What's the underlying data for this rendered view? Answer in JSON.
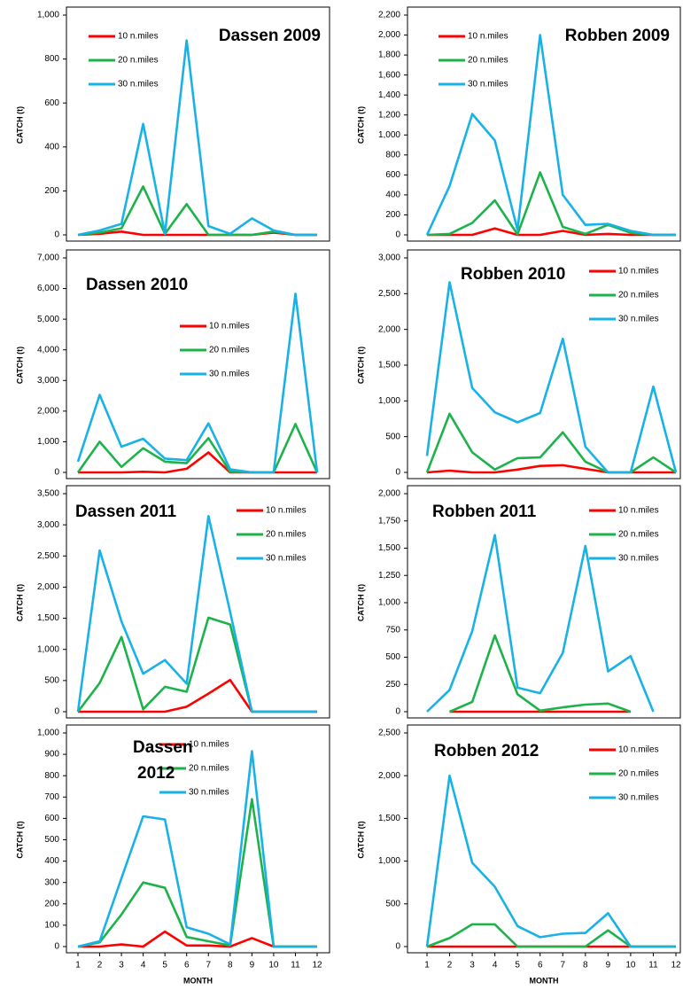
{
  "chart_data": [
    {
      "type": "line",
      "title": "Dassen 2009",
      "ylabel": "CATCH (t)",
      "x": [
        1,
        2,
        3,
        4,
        5,
        6,
        7,
        8,
        9,
        10,
        11,
        12
      ],
      "xlim": [
        1,
        12
      ],
      "ylim": [
        0,
        1000
      ],
      "yticks": [
        0,
        200,
        400,
        600,
        800,
        {
          "value": 1000,
          "label": "1,000"
        }
      ],
      "series": [
        {
          "name": "10 n.miles",
          "color": "#ff0000",
          "values": [
            0,
            5,
            15,
            0,
            0,
            0,
            0,
            0,
            0,
            10,
            0,
            0
          ]
        },
        {
          "name": "20 n.miles",
          "color": "#1db34b",
          "values": [
            0,
            10,
            30,
            220,
            5,
            140,
            0,
            0,
            0,
            15,
            0,
            0
          ]
        },
        {
          "name": "30 n.miles",
          "color": "#19b2e6",
          "values": [
            0,
            20,
            50,
            505,
            5,
            885,
            40,
            5,
            75,
            20,
            0,
            0
          ]
        }
      ]
    },
    {
      "type": "line",
      "title": "Robben 2009",
      "ylabel": "CATCH (t)",
      "x": [
        1,
        2,
        3,
        4,
        5,
        6,
        7,
        8,
        9,
        10,
        11,
        12
      ],
      "xlim": [
        1,
        12
      ],
      "ylim": [
        0,
        2200
      ],
      "yticks": [
        0,
        200,
        400,
        600,
        800,
        {
          "value": 1000,
          "label": "1,000"
        },
        {
          "value": 1200,
          "label": "1,200"
        },
        {
          "value": 1400,
          "label": "1,400"
        },
        {
          "value": 1600,
          "label": "1,600"
        },
        {
          "value": 1800,
          "label": "1,800"
        },
        {
          "value": 2000,
          "label": "2,000"
        },
        {
          "value": 2200,
          "label": "2,200"
        }
      ],
      "series": [
        {
          "name": "10 n.miles",
          "color": "#ff0000",
          "values": [
            0,
            0,
            0,
            65,
            0,
            0,
            40,
            0,
            10,
            0,
            0,
            0
          ]
        },
        {
          "name": "20 n.miles",
          "color": "#1db34b",
          "values": [
            0,
            10,
            120,
            345,
            5,
            625,
            80,
            10,
            100,
            20,
            0,
            0
          ]
        },
        {
          "name": "30 n.miles",
          "color": "#19b2e6",
          "values": [
            0,
            490,
            1210,
            945,
            50,
            2000,
            400,
            100,
            110,
            40,
            0,
            0
          ]
        }
      ]
    },
    {
      "type": "line",
      "title": "Dassen 2010",
      "ylabel": "CATCH (t)",
      "x": [
        1,
        2,
        3,
        4,
        5,
        6,
        7,
        8,
        9,
        10,
        11,
        12
      ],
      "xlim": [
        1,
        12
      ],
      "ylim": [
        0,
        7000
      ],
      "yticks": [
        0,
        {
          "value": 1000,
          "label": "1,000"
        },
        {
          "value": 2000,
          "label": "2,000"
        },
        {
          "value": 3000,
          "label": "3,000"
        },
        {
          "value": 4000,
          "label": "4,000"
        },
        {
          "value": 5000,
          "label": "5,000"
        },
        {
          "value": 6000,
          "label": "6,000"
        },
        {
          "value": 7000,
          "label": "7,000"
        }
      ],
      "series": [
        {
          "name": "10 n.miles",
          "color": "#ff0000",
          "values": [
            0,
            0,
            0,
            20,
            0,
            120,
            650,
            0,
            0,
            0,
            0,
            0
          ]
        },
        {
          "name": "20 n.miles",
          "color": "#1db34b",
          "values": [
            0,
            1000,
            180,
            790,
            350,
            300,
            1120,
            20,
            0,
            0,
            1580,
            0
          ]
        },
        {
          "name": "30 n.miles",
          "color": "#19b2e6",
          "values": [
            350,
            2530,
            840,
            1100,
            450,
            400,
            1600,
            100,
            0,
            0,
            5830,
            0
          ]
        }
      ]
    },
    {
      "type": "line",
      "title": "Robben 2010",
      "ylabel": "CATCH (t)",
      "x": [
        1,
        2,
        3,
        4,
        5,
        6,
        7,
        8,
        9,
        10,
        11,
        12
      ],
      "xlim": [
        1,
        12
      ],
      "ylim": [
        0,
        3000
      ],
      "yticks": [
        0,
        500,
        {
          "value": 1000,
          "label": "1,000"
        },
        {
          "value": 1500,
          "label": "1,500"
        },
        {
          "value": 2000,
          "label": "2,000"
        },
        {
          "value": 2500,
          "label": "2,500"
        },
        {
          "value": 3000,
          "label": "3,000"
        }
      ],
      "series": [
        {
          "name": "10 n.miles",
          "color": "#ff0000",
          "values": [
            0,
            25,
            0,
            0,
            40,
            90,
            100,
            50,
            0,
            0,
            0,
            0
          ]
        },
        {
          "name": "20 n.miles",
          "color": "#1db34b",
          "values": [
            0,
            820,
            280,
            40,
            200,
            210,
            560,
            150,
            0,
            0,
            210,
            0
          ]
        },
        {
          "name": "30 n.miles",
          "color": "#19b2e6",
          "values": [
            230,
            2660,
            1180,
            840,
            700,
            830,
            1870,
            360,
            0,
            0,
            1200,
            0
          ]
        }
      ]
    },
    {
      "type": "line",
      "title": "Dassen 2011",
      "ylabel": "CATCH (t)",
      "x": [
        1,
        2,
        3,
        4,
        5,
        6,
        7,
        8,
        9,
        10,
        11,
        12
      ],
      "xlim": [
        1,
        12
      ],
      "ylim": [
        0,
        3500
      ],
      "yticks": [
        0,
        500,
        {
          "value": 1000,
          "label": "1,000"
        },
        {
          "value": 1500,
          "label": "1,500"
        },
        {
          "value": 2000,
          "label": "2,000"
        },
        {
          "value": 2500,
          "label": "2,500"
        },
        {
          "value": 3000,
          "label": "3,000"
        },
        {
          "value": 3500,
          "label": "3,500"
        }
      ],
      "series": [
        {
          "name": "10 n.miles",
          "color": "#ff0000",
          "values": [
            0,
            0,
            0,
            0,
            0,
            80,
            290,
            510,
            0,
            0,
            0,
            0
          ]
        },
        {
          "name": "20 n.miles",
          "color": "#1db34b",
          "values": [
            0,
            460,
            1200,
            40,
            400,
            320,
            1510,
            1400,
            0,
            0,
            0,
            0
          ]
        },
        {
          "name": "30 n.miles",
          "color": "#19b2e6",
          "values": [
            0,
            2590,
            1450,
            610,
            830,
            450,
            3140,
            1600,
            0,
            0,
            0,
            0
          ]
        }
      ]
    },
    {
      "type": "line",
      "title": "Robben 2011",
      "ylabel": "CATCH (t)",
      "x": [
        1,
        2,
        3,
        4,
        5,
        6,
        7,
        8,
        9,
        10,
        11,
        12
      ],
      "xlim": [
        1,
        12
      ],
      "ylim": [
        0,
        2000
      ],
      "yticks": [
        0,
        250,
        500,
        750,
        {
          "value": 1000,
          "label": "1,000"
        },
        {
          "value": 1250,
          "label": "1,250"
        },
        {
          "value": 1500,
          "label": "1,500"
        },
        {
          "value": 1750,
          "label": "1,750"
        },
        {
          "value": 2000,
          "label": "2,000"
        }
      ],
      "series": [
        {
          "name": "10 n.miles",
          "color": "#ff0000",
          "values": [
            null,
            0,
            0,
            0,
            0,
            0,
            0,
            0,
            0,
            0,
            null,
            null
          ]
        },
        {
          "name": "20 n.miles",
          "color": "#1db34b",
          "values": [
            null,
            0,
            90,
            700,
            160,
            10,
            40,
            65,
            75,
            0,
            null,
            null
          ]
        },
        {
          "name": "30 n.miles",
          "color": "#19b2e6",
          "values": [
            0,
            200,
            740,
            1620,
            220,
            170,
            540,
            1520,
            370,
            510,
            0,
            null
          ]
        }
      ]
    },
    {
      "type": "line",
      "title": [
        "Dassen",
        "2012"
      ],
      "ylabel": "CATCH (t)",
      "xlabel": "MONTH",
      "x": [
        1,
        2,
        3,
        4,
        5,
        6,
        7,
        8,
        9,
        10,
        11,
        12
      ],
      "xlim": [
        1,
        12
      ],
      "xticks": [
        1,
        2,
        3,
        4,
        5,
        6,
        7,
        8,
        9,
        10,
        11,
        12
      ],
      "ylim": [
        0,
        1000
      ],
      "yticks": [
        0,
        100,
        200,
        300,
        400,
        500,
        600,
        700,
        800,
        900,
        {
          "value": 1000,
          "label": "1,000"
        }
      ],
      "series": [
        {
          "name": "10 n.miles",
          "color": "#ff0000",
          "values": [
            0,
            0,
            10,
            0,
            70,
            5,
            5,
            0,
            40,
            0,
            0,
            0
          ]
        },
        {
          "name": "20 n.miles",
          "color": "#1db34b",
          "values": [
            0,
            20,
            150,
            300,
            275,
            45,
            25,
            5,
            690,
            0,
            0,
            0
          ]
        },
        {
          "name": "30 n.miles",
          "color": "#19b2e6",
          "values": [
            0,
            25,
            320,
            610,
            595,
            90,
            60,
            10,
            915,
            0,
            0,
            0
          ]
        }
      ]
    },
    {
      "type": "line",
      "title": "Robben 2012",
      "ylabel": "CATCH (t)",
      "xlabel": "MONTH",
      "x": [
        1,
        2,
        3,
        4,
        5,
        6,
        7,
        8,
        9,
        10,
        11,
        12
      ],
      "xlim": [
        1,
        12
      ],
      "xticks": [
        1,
        2,
        3,
        4,
        5,
        6,
        7,
        8,
        9,
        10,
        11,
        12
      ],
      "ylim": [
        0,
        2500
      ],
      "yticks": [
        0,
        500,
        {
          "value": 1000,
          "label": "1,000"
        },
        {
          "value": 1500,
          "label": "1,500"
        },
        {
          "value": 2000,
          "label": "2,000"
        },
        {
          "value": 2500,
          "label": "2,500"
        }
      ],
      "series": [
        {
          "name": "10 n.miles",
          "color": "#ff0000",
          "values": [
            0,
            0,
            0,
            0,
            0,
            0,
            0,
            0,
            0,
            0,
            0,
            0
          ]
        },
        {
          "name": "20 n.miles",
          "color": "#1db34b",
          "values": [
            0,
            100,
            260,
            260,
            0,
            0,
            0,
            0,
            190,
            0,
            0,
            0
          ]
        },
        {
          "name": "30 n.miles",
          "color": "#19b2e6",
          "values": [
            0,
            2000,
            980,
            700,
            240,
            110,
            150,
            160,
            390,
            0,
            0,
            0
          ]
        }
      ]
    }
  ]
}
